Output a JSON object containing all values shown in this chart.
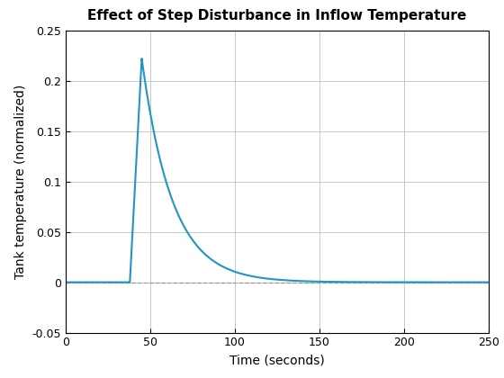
{
  "title": "Effect of Step Disturbance in Inflow Temperature",
  "xlabel": "Time (seconds)",
  "ylabel": "Tank temperature (normalized)",
  "xlim": [
    0,
    250
  ],
  "ylim": [
    -0.05,
    0.25
  ],
  "xticks": [
    0,
    50,
    100,
    150,
    200,
    250
  ],
  "yticks": [
    -0.05,
    0,
    0.05,
    0.1,
    0.15,
    0.2,
    0.25
  ],
  "line_color": "#2196C4",
  "dashed_line_color": "#999999",
  "grid_color": "#C8C8C8",
  "background_color": "#FFFFFF",
  "step_time": 38,
  "peak_time": 45,
  "peak_value": 0.222,
  "decay_tau": 18,
  "title_fontsize": 11,
  "label_fontsize": 10,
  "tick_fontsize": 9
}
